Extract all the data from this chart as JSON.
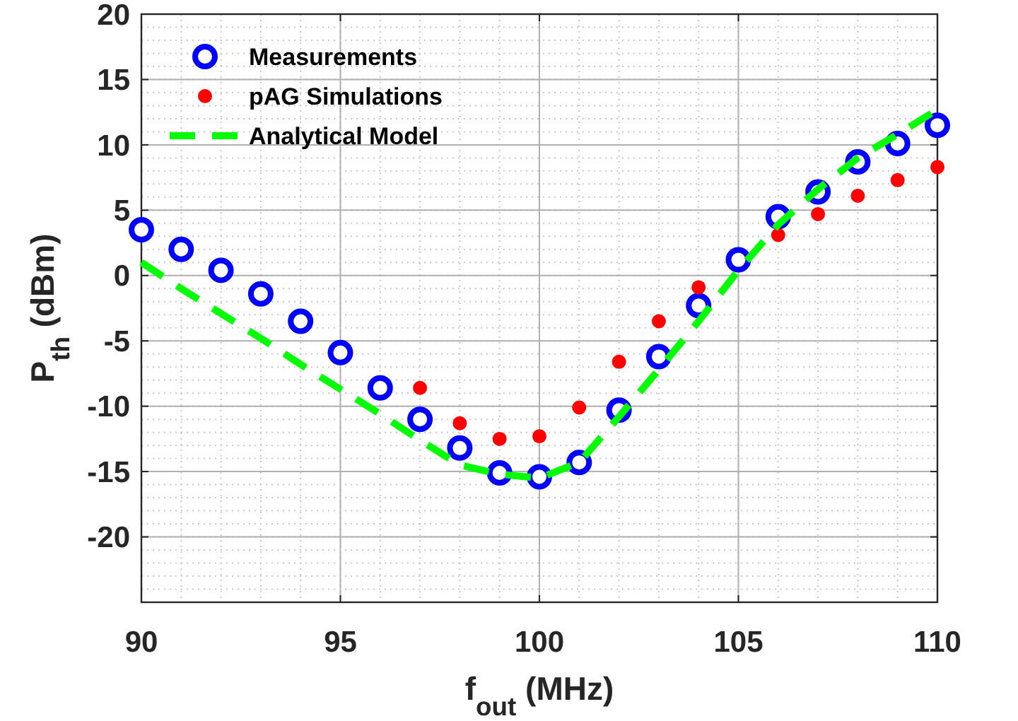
{
  "chart_data": {
    "type": "scatter",
    "xlabel": "f$_{out}$ (MHz)",
    "ylabel": "P$_{th}$ (dBm)",
    "x": [
      90,
      91,
      92,
      93,
      94,
      95,
      96,
      97,
      98,
      99,
      100,
      101,
      102,
      103,
      104,
      105,
      106,
      107,
      108,
      109,
      110
    ],
    "xlim": [
      90,
      110
    ],
    "xticks": [
      90,
      95,
      100,
      105,
      110
    ],
    "ylim": [
      -25,
      20
    ],
    "yticks": [
      -20,
      -15,
      -10,
      -5,
      0,
      5,
      10,
      15,
      20
    ],
    "grid": true,
    "legend": "top left",
    "series": [
      {
        "name": "Measurements",
        "marker": "circle",
        "color": "#0000ff",
        "values": [
          3.5,
          2.0,
          0.4,
          -1.4,
          -3.5,
          -5.9,
          -8.6,
          -11.0,
          -13.2,
          -15.1,
          -15.4,
          -14.3,
          -10.3,
          -6.2,
          -2.3,
          1.2,
          4.5,
          6.4,
          8.7,
          10.1,
          11.5
        ]
      },
      {
        "name": "pAG Simulations",
        "marker": "circle",
        "color": "#ff0000",
        "values": [
          null,
          null,
          null,
          null,
          null,
          null,
          null,
          -8.6,
          -11.3,
          -12.5,
          -12.3,
          -10.1,
          -6.6,
          -3.5,
          -0.9,
          null,
          3.1,
          4.7,
          6.1,
          7.3,
          8.3
        ]
      },
      {
        "name": "Analytical Model",
        "type": "line",
        "marker": "none",
        "line_style": "dashed",
        "color": "#00ff00",
        "values": [
          1.0,
          -1.0,
          -2.9,
          -4.8,
          -6.8,
          -8.7,
          -10.6,
          -12.6,
          -14.5,
          -15.2,
          -15.5,
          -14.3,
          -10.8,
          -7.2,
          -3.5,
          0.4,
          3.9,
          6.6,
          9.0,
          10.8,
          12.7
        ]
      }
    ]
  }
}
